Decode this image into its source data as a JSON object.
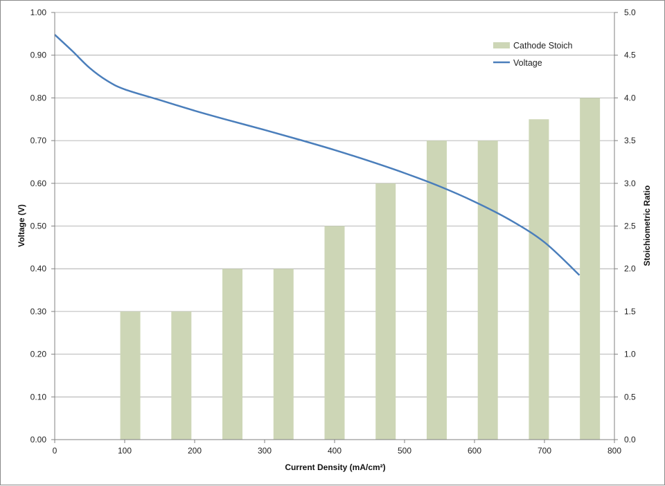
{
  "chart_data": {
    "type": "bar",
    "title": "",
    "xlabel": "Current Density (mA/cm²)",
    "ylabel_left": "Voltage (V)",
    "ylabel_right": "Stoichiometric Ratio",
    "xlim": [
      0,
      800
    ],
    "ylim_left": [
      0,
      1.0
    ],
    "ylim_right": [
      0,
      5.0
    ],
    "x_ticks": [
      "0",
      "100",
      "200",
      "300",
      "400",
      "500",
      "600",
      "700",
      "800"
    ],
    "y_left_ticks": [
      "0.00",
      "0.10",
      "0.20",
      "0.30",
      "0.40",
      "0.50",
      "0.60",
      "0.70",
      "0.80",
      "0.90",
      "1.00"
    ],
    "y_right_ticks": [
      "0.0",
      "0.5",
      "1.0",
      "1.5",
      "2.0",
      "2.5",
      "3.0",
      "3.5",
      "4.0",
      "4.5",
      "5.0"
    ],
    "grid": true,
    "legend_position": "top-right",
    "series": [
      {
        "name": "Cathode Stoich",
        "kind": "bar",
        "axis": "right",
        "color": "#cdd6b6",
        "x": [
          108,
          181,
          254,
          327,
          400,
          473,
          546,
          619,
          692,
          765
        ],
        "values": [
          1.5,
          1.5,
          2.0,
          2.0,
          2.5,
          3.0,
          3.5,
          3.5,
          3.75,
          4.0
        ]
      },
      {
        "name": "Voltage",
        "kind": "line",
        "axis": "left",
        "color": "#4a7ebb",
        "x": [
          0,
          25,
          50,
          75,
          100,
          150,
          200,
          250,
          300,
          350,
          400,
          450,
          500,
          550,
          600,
          650,
          700,
          750
        ],
        "values": [
          0.948,
          0.91,
          0.87,
          0.84,
          0.82,
          0.795,
          0.77,
          0.747,
          0.725,
          0.702,
          0.678,
          0.652,
          0.624,
          0.593,
          0.557,
          0.515,
          0.462,
          0.385
        ]
      }
    ]
  }
}
